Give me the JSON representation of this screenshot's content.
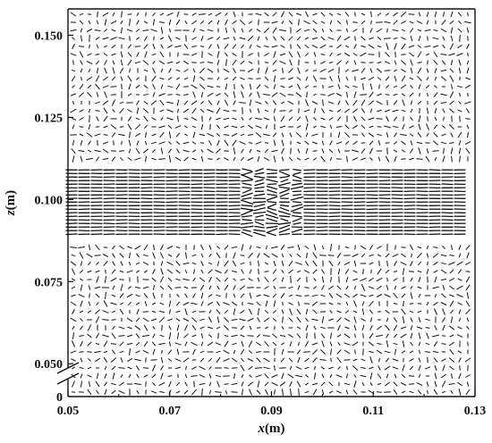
{
  "chart_data": {
    "type": "quiver",
    "title": "",
    "xlabel_var": "x",
    "xlabel_unit": "(m)",
    "ylabel_var": "z",
    "ylabel_unit": "(m)",
    "xlim": [
      0.05,
      0.13
    ],
    "ylim": [
      0.04,
      0.158
    ],
    "x_ticks": [
      "0.05",
      "0.07",
      "0.09",
      "0.11",
      "0.13"
    ],
    "y_ticks": [
      "0.150",
      "0.125",
      "0.100",
      "0.075",
      "0.050"
    ],
    "y_zero_label": "0",
    "axis_break": true,
    "grid": false,
    "legend": "none",
    "vector_color": "#111111",
    "jet_region": {
      "z_min": 0.089,
      "z_max": 0.109,
      "x_start": 0.05,
      "x_end": 0.13
    },
    "notes": "Random background vectors with a strong horizontal leftward jet band near z≈0.09–0.109 m and a disturbance near x≈0.09 m"
  }
}
